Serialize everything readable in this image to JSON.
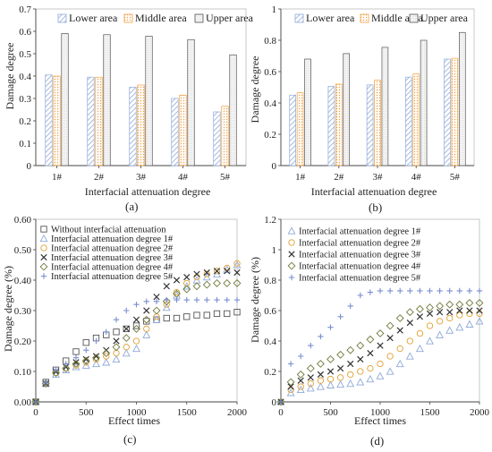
{
  "chart_data": [
    {
      "id": "a",
      "type": "bar",
      "panel_label": "(a)",
      "xlabel": "Interfacial attenuation degree",
      "ylabel": "Damage degree",
      "categories": [
        "1#",
        "2#",
        "3#",
        "4#",
        "5#"
      ],
      "ylim": [
        0,
        0.7
      ],
      "yticks": [
        "0",
        "0.1",
        "0.2",
        "0.3",
        "0.4",
        "0.5",
        "0.6",
        "0.7"
      ],
      "legend_position": "top",
      "series": [
        {
          "name": "Lower area",
          "pattern": "hatch",
          "color": "#8fa9d8",
          "values": [
            0.405,
            0.395,
            0.35,
            0.3,
            0.24
          ]
        },
        {
          "name": "Middle area",
          "pattern": "dots",
          "color": "#f0a040",
          "values": [
            0.4,
            0.395,
            0.36,
            0.315,
            0.265
          ]
        },
        {
          "name": "Upper area",
          "pattern": "fine",
          "color": "#555555",
          "values": [
            0.59,
            0.585,
            0.578,
            0.563,
            0.495
          ]
        }
      ]
    },
    {
      "id": "b",
      "type": "bar",
      "panel_label": "(b)",
      "xlabel": "Interfacial attenuation degree",
      "ylabel": "Damage degree",
      "categories": [
        "1#",
        "2#",
        "3#",
        "4#",
        "5#"
      ],
      "ylim": [
        0,
        1.0
      ],
      "yticks": [
        "0",
        "0.2",
        "0.4",
        "0.6",
        "0.8",
        "1"
      ],
      "legend_position": "top",
      "series": [
        {
          "name": "Lower area",
          "pattern": "hatch",
          "color": "#8fa9d8",
          "values": [
            0.45,
            0.505,
            0.515,
            0.565,
            0.68
          ]
        },
        {
          "name": "Middle area",
          "pattern": "dots",
          "color": "#f0a040",
          "values": [
            0.465,
            0.52,
            0.545,
            0.585,
            0.685
          ]
        },
        {
          "name": "Upper area",
          "pattern": "fine",
          "color": "#555555",
          "values": [
            0.68,
            0.715,
            0.755,
            0.8,
            0.85
          ]
        }
      ]
    },
    {
      "id": "c",
      "type": "scatter",
      "panel_label": "(c)",
      "xlabel": "Effect times",
      "ylabel": "Damage degree (%)",
      "xlim": [
        0,
        2000
      ],
      "ylim": [
        0,
        0.6
      ],
      "xticks": [
        "0",
        "500",
        "1000",
        "1500",
        "2000"
      ],
      "yticks": [
        "0.00",
        "0.10",
        "0.20",
        "0.30",
        "0.40",
        "0.50",
        "0.60"
      ],
      "legend_position": "top-left",
      "series": [
        {
          "name": "Without interfacial attenuation",
          "marker": "square",
          "color": "#555555",
          "x": [
            0,
            100,
            200,
            300,
            400,
            500,
            600,
            700,
            800,
            900,
            1000,
            1100,
            1200,
            1300,
            1400,
            1500,
            1600,
            1700,
            1800,
            1900,
            2000
          ],
          "y": [
            0,
            0.065,
            0.105,
            0.135,
            0.165,
            0.195,
            0.21,
            0.22,
            0.23,
            0.24,
            0.25,
            0.265,
            0.27,
            0.275,
            0.275,
            0.28,
            0.285,
            0.285,
            0.29,
            0.29,
            0.295
          ]
        },
        {
          "name": "Interfacial attenuation degree 1#",
          "marker": "triangle",
          "color": "#8fa9d8",
          "x": [
            0,
            100,
            200,
            300,
            400,
            500,
            600,
            700,
            800,
            900,
            1000,
            1100,
            1200,
            1300,
            1400,
            1500,
            1600,
            1700,
            1800,
            1900,
            2000
          ],
          "y": [
            0,
            0.06,
            0.09,
            0.105,
            0.115,
            0.12,
            0.125,
            0.13,
            0.14,
            0.16,
            0.175,
            0.22,
            0.27,
            0.31,
            0.35,
            0.38,
            0.4,
            0.41,
            0.42,
            0.435,
            0.45
          ]
        },
        {
          "name": "Interfacial attenuation degree 2#",
          "marker": "circle",
          "color": "#e0a030",
          "x": [
            0,
            100,
            200,
            300,
            400,
            500,
            600,
            700,
            800,
            900,
            1000,
            1100,
            1200,
            1300,
            1400,
            1500,
            1600,
            1700,
            1800,
            1900,
            2000
          ],
          "y": [
            0,
            0.06,
            0.095,
            0.11,
            0.12,
            0.13,
            0.14,
            0.15,
            0.16,
            0.18,
            0.2,
            0.24,
            0.28,
            0.32,
            0.36,
            0.39,
            0.41,
            0.42,
            0.43,
            0.44,
            0.455
          ]
        },
        {
          "name": "Interfacial attenuation degree 3#",
          "marker": "x",
          "color": "#333333",
          "x": [
            0,
            100,
            200,
            300,
            400,
            500,
            600,
            700,
            800,
            900,
            1000,
            1100,
            1200,
            1300,
            1400,
            1500,
            1600,
            1700,
            1800,
            1900,
            2000
          ],
          "y": [
            0,
            0.06,
            0.1,
            0.115,
            0.13,
            0.14,
            0.15,
            0.17,
            0.2,
            0.24,
            0.27,
            0.3,
            0.345,
            0.38,
            0.4,
            0.41,
            0.42,
            0.425,
            0.43,
            0.43,
            0.425
          ]
        },
        {
          "name": "Interfacial attenuation degree 4#",
          "marker": "diamond",
          "color": "#6e7a3a",
          "x": [
            0,
            100,
            200,
            300,
            400,
            500,
            600,
            700,
            800,
            900,
            1000,
            1100,
            1200,
            1300,
            1400,
            1500,
            1600,
            1700,
            1800,
            1900,
            2000
          ],
          "y": [
            0,
            0.06,
            0.095,
            0.11,
            0.125,
            0.135,
            0.145,
            0.16,
            0.18,
            0.21,
            0.24,
            0.27,
            0.3,
            0.33,
            0.355,
            0.37,
            0.38,
            0.385,
            0.39,
            0.39,
            0.39
          ]
        },
        {
          "name": "Interfacial attenuation degree 5#",
          "marker": "plus",
          "color": "#7a8fd0",
          "x": [
            0,
            100,
            200,
            300,
            400,
            500,
            600,
            700,
            800,
            900,
            1000,
            1100,
            1200,
            1300,
            1400,
            1500,
            1600,
            1700,
            1800,
            1900,
            2000
          ],
          "y": [
            0,
            0.065,
            0.105,
            0.125,
            0.145,
            0.17,
            0.2,
            0.23,
            0.27,
            0.3,
            0.32,
            0.33,
            0.33,
            0.335,
            0.335,
            0.335,
            0.335,
            0.335,
            0.335,
            0.335,
            0.335
          ]
        }
      ]
    },
    {
      "id": "d",
      "type": "scatter",
      "panel_label": "(d)",
      "xlabel": "Effect times",
      "ylabel": "Damage degree (%)",
      "xlim": [
        0,
        2000
      ],
      "ylim": [
        0,
        1.2
      ],
      "xticks": [
        "0",
        "500",
        "1000",
        "1500",
        "2000"
      ],
      "yticks": [
        "0",
        "0.2",
        "0.4",
        "0.6",
        "0.8",
        "1",
        "1.2"
      ],
      "legend_position": "top-left",
      "series": [
        {
          "name": "Interfacial attenuation degree 1#",
          "marker": "triangle",
          "color": "#8fa9d8",
          "x": [
            0,
            100,
            200,
            300,
            400,
            500,
            600,
            700,
            800,
            900,
            1000,
            1100,
            1200,
            1300,
            1400,
            1500,
            1600,
            1700,
            1800,
            1900,
            2000
          ],
          "y": [
            0,
            0.06,
            0.08,
            0.09,
            0.1,
            0.11,
            0.115,
            0.12,
            0.13,
            0.15,
            0.17,
            0.2,
            0.25,
            0.3,
            0.35,
            0.4,
            0.44,
            0.47,
            0.49,
            0.51,
            0.53
          ]
        },
        {
          "name": "Interfacial attenuation degree 2#",
          "marker": "circle",
          "color": "#e0a030",
          "x": [
            0,
            100,
            200,
            300,
            400,
            500,
            600,
            700,
            800,
            900,
            1000,
            1100,
            1200,
            1300,
            1400,
            1500,
            1600,
            1700,
            1800,
            1900,
            2000
          ],
          "y": [
            0,
            0.08,
            0.1,
            0.12,
            0.14,
            0.15,
            0.16,
            0.18,
            0.2,
            0.22,
            0.25,
            0.3,
            0.35,
            0.4,
            0.45,
            0.5,
            0.53,
            0.55,
            0.57,
            0.58,
            0.58
          ]
        },
        {
          "name": "Interfacial attenuation degree 3#",
          "marker": "x",
          "color": "#333333",
          "x": [
            0,
            100,
            200,
            300,
            400,
            500,
            600,
            700,
            800,
            900,
            1000,
            1100,
            1200,
            1300,
            1400,
            1500,
            1600,
            1700,
            1800,
            1900,
            2000
          ],
          "y": [
            0,
            0.1,
            0.14,
            0.16,
            0.18,
            0.2,
            0.22,
            0.25,
            0.28,
            0.32,
            0.37,
            0.42,
            0.47,
            0.52,
            0.56,
            0.58,
            0.59,
            0.59,
            0.6,
            0.6,
            0.6
          ]
        },
        {
          "name": "Interfacial attenuation degree 4#",
          "marker": "diamond",
          "color": "#6e7a3a",
          "x": [
            0,
            100,
            200,
            300,
            400,
            500,
            600,
            700,
            800,
            900,
            1000,
            1100,
            1200,
            1300,
            1400,
            1500,
            1600,
            1700,
            1800,
            1900,
            2000
          ],
          "y": [
            0,
            0.13,
            0.18,
            0.22,
            0.25,
            0.28,
            0.31,
            0.34,
            0.37,
            0.41,
            0.45,
            0.5,
            0.55,
            0.59,
            0.61,
            0.62,
            0.63,
            0.64,
            0.64,
            0.65,
            0.65
          ]
        },
        {
          "name": "Interfacial attenuation degree 5#",
          "marker": "plus",
          "color": "#7a8fd0",
          "x": [
            0,
            100,
            200,
            300,
            400,
            500,
            600,
            700,
            800,
            900,
            1000,
            1100,
            1200,
            1300,
            1400,
            1500,
            1600,
            1700,
            1800,
            1900,
            2000
          ],
          "y": [
            0,
            0.25,
            0.3,
            0.37,
            0.43,
            0.49,
            0.56,
            0.63,
            0.7,
            0.72,
            0.73,
            0.73,
            0.73,
            0.73,
            0.73,
            0.73,
            0.73,
            0.73,
            0.73,
            0.73,
            0.73
          ]
        }
      ]
    }
  ]
}
